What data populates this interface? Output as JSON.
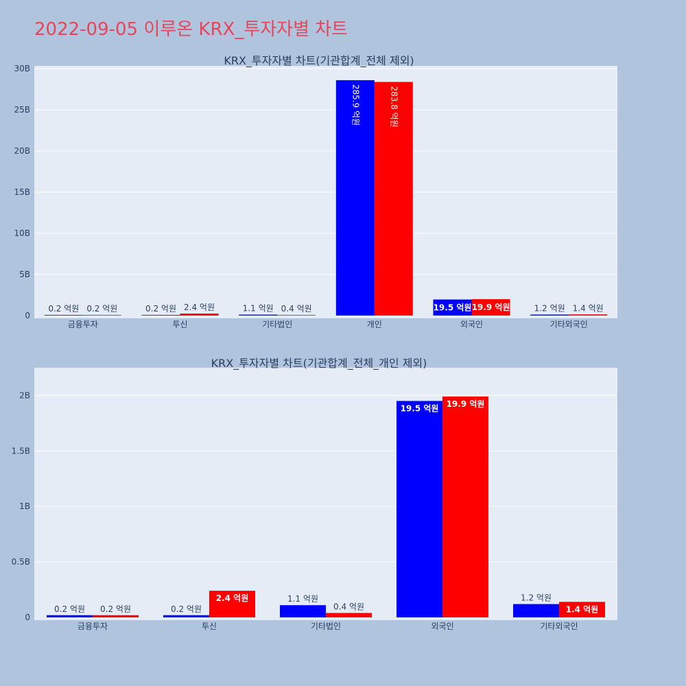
{
  "title": "2022-09-05 이루온 KRX_투자자별 차트",
  "colors": {
    "page_bg": "#b0c4de",
    "plot_bg": "#e5ecf6",
    "title": "#e8455a",
    "series_1": "#0000ff",
    "series_2": "#ff0000",
    "text": "#2a3f5f"
  },
  "chart_data": [
    {
      "type": "bar",
      "title": "KRX_투자자별 차트(기관합계_전체 제외)",
      "categories": [
        "금융투자",
        "투신",
        "기타법인",
        "개인",
        "외국인",
        "기타외국인"
      ],
      "series": [
        {
          "color": "#0000ff",
          "values": [
            20000000,
            20000000,
            110000000,
            28590000000,
            1950000000,
            120000000
          ],
          "labels": [
            "0.2 억원",
            "0.2 억원",
            "1.1 억원",
            "285.9 억원",
            "19.5 억원",
            "1.2 억원"
          ]
        },
        {
          "color": "#ff0000",
          "values": [
            20000000,
            240000000,
            40000000,
            28380000000,
            1990000000,
            140000000
          ],
          "labels": [
            "0.2 억원",
            "2.4 억원",
            "0.4 억원",
            "283.8 억원",
            "19.9 억원",
            "1.4 억원"
          ]
        }
      ],
      "yticks": [
        0,
        5000000000,
        10000000000,
        15000000000,
        20000000000,
        25000000000,
        30000000000
      ],
      "ytick_labels": [
        "0",
        "5B",
        "10B",
        "15B",
        "20B",
        "25B",
        "30B"
      ],
      "ylim": [
        0,
        30000000000
      ],
      "grid": true,
      "legend": "none"
    },
    {
      "type": "bar",
      "title": "KRX_투자자별 차트(기관합계_전체_개인 제외)",
      "categories": [
        "금융투자",
        "투신",
        "기타법인",
        "외국인",
        "기타외국인"
      ],
      "series": [
        {
          "color": "#0000ff",
          "values": [
            20000000,
            20000000,
            110000000,
            1950000000,
            120000000
          ],
          "labels": [
            "0.2 억원",
            "0.2 억원",
            "1.1 억원",
            "19.5 억원",
            "1.2 억원"
          ]
        },
        {
          "color": "#ff0000",
          "values": [
            20000000,
            240000000,
            40000000,
            1990000000,
            140000000
          ],
          "labels": [
            "0.2 억원",
            "2.4 억원",
            "0.4 억원",
            "19.9 억원",
            "1.4 억원"
          ]
        }
      ],
      "yticks": [
        0,
        500000000,
        1000000000,
        1500000000,
        2000000000
      ],
      "ytick_labels": [
        "0",
        "0.5B",
        "1B",
        "1.5B",
        "2B"
      ],
      "ylim": [
        0,
        2120000000
      ],
      "grid": true,
      "legend": "none"
    }
  ]
}
